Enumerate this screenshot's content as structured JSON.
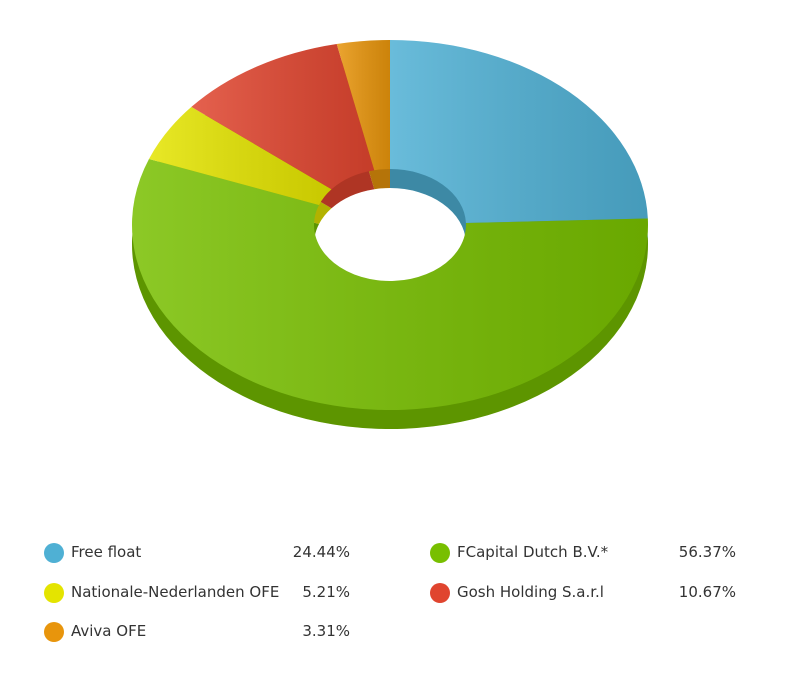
{
  "chart_data": {
    "type": "pie",
    "donut": true,
    "series": [
      {
        "name": "Free float",
        "color": "#4fb0d4",
        "values": [
          24.44
        ],
        "value_labels": [
          "24.44%"
        ]
      },
      {
        "name": "FCapital Dutch B.V.*",
        "color": "#78bf00",
        "values": [
          56.37
        ],
        "value_labels": [
          "56.37%"
        ]
      },
      {
        "name": "Nationale-Nederlanden OFE",
        "color": "#e4e400",
        "values": [
          5.21
        ],
        "value_labels": [
          "5.21%"
        ]
      },
      {
        "name": "Gosh Holding S.a.r.l",
        "color": "#e0452f",
        "values": [
          10.67
        ],
        "value_labels": [
          "10.67%"
        ]
      },
      {
        "name": "Aviva OFE",
        "color": "#e8950c",
        "values": [
          3.31
        ],
        "value_labels": [
          "3.31%"
        ]
      }
    ]
  }
}
